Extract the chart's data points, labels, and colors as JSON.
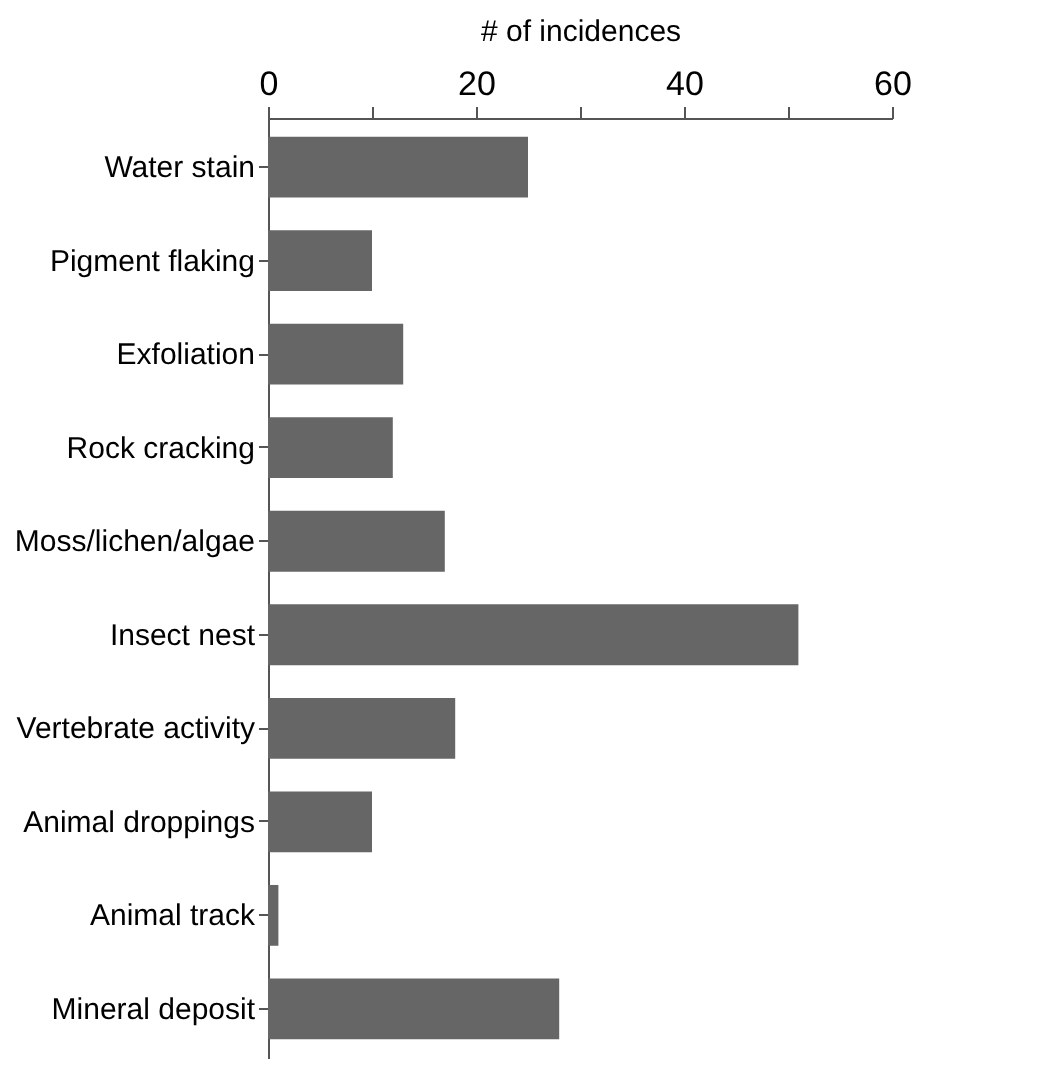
{
  "chart_data": {
    "type": "bar",
    "orientation": "horizontal",
    "xlabel": "# of incidences",
    "categories": [
      "Water stain",
      "Pigment flaking",
      "Exfoliation",
      "Rock cracking",
      "Moss/lichen/algae",
      "Insect nest",
      "Vertebrate activity",
      "Animal droppings",
      "Animal track",
      "Mineral deposit"
    ],
    "values": [
      25,
      10,
      13,
      12,
      17,
      51,
      18,
      10,
      1,
      28
    ],
    "color": "#666666",
    "xlim": [
      0,
      60
    ],
    "xticks": [
      0,
      {
        "value": 10,
        "label": null
      },
      20,
      {
        "value": 30,
        "label": null
      },
      40,
      {
        "value": 50,
        "label": null
      },
      60
    ],
    "grid": false
  }
}
